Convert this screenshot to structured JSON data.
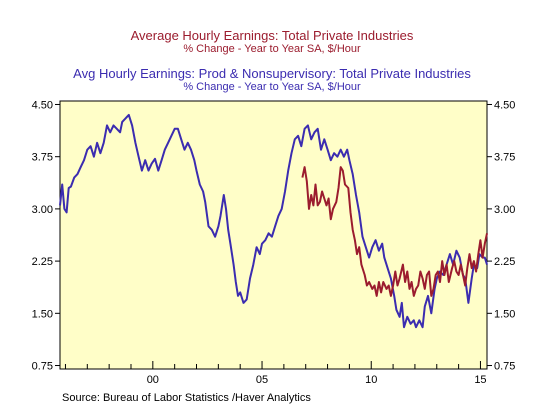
{
  "chart_data": {
    "type": "line",
    "titles": [
      {
        "line1": "Average Hourly Earnings: Total Private Industries",
        "line2": "% Change - Year to Year    SA, $/Hour",
        "color": "#9b1c2e"
      },
      {
        "line1": "Avg Hourly Earnings: Prod & Nonsupervisory: Total Private Industries",
        "line2": "% Change - Year to Year    SA, $/Hour",
        "color": "#3b2cb0"
      }
    ],
    "source": "Source:  Bureau of Labor Statistics /Haver Analytics",
    "x_ticks": [
      {
        "x": 2000,
        "label": "00"
      },
      {
        "x": 2005,
        "label": "05"
      },
      {
        "x": 2010,
        "label": "10"
      },
      {
        "x": 2015,
        "label": "15"
      }
    ],
    "y_ticks": [
      "4.50",
      "3.75",
      "3.00",
      "2.25",
      "1.50",
      "0.75"
    ],
    "xlim": [
      1995.75,
      2015.3
    ],
    "ylim": [
      0.7,
      4.55
    ],
    "grid": false,
    "background_color": "#fffec8",
    "series": [
      {
        "name": "Avg Hourly Earnings: Prod & Nonsupervisory: Total Private Industries",
        "color": "#3b2cb0",
        "points": [
          [
            1995.75,
            3.05
          ],
          [
            1995.85,
            3.35
          ],
          [
            1995.95,
            3.0
          ],
          [
            1996.05,
            2.95
          ],
          [
            1996.15,
            3.3
          ],
          [
            1996.25,
            3.32
          ],
          [
            1996.4,
            3.45
          ],
          [
            1996.55,
            3.5
          ],
          [
            1996.7,
            3.6
          ],
          [
            1996.85,
            3.7
          ],
          [
            1997.0,
            3.85
          ],
          [
            1997.15,
            3.9
          ],
          [
            1997.3,
            3.75
          ],
          [
            1997.45,
            3.95
          ],
          [
            1997.6,
            3.8
          ],
          [
            1997.75,
            3.95
          ],
          [
            1997.9,
            4.2
          ],
          [
            1998.05,
            4.1
          ],
          [
            1998.2,
            4.2
          ],
          [
            1998.35,
            4.15
          ],
          [
            1998.5,
            4.1
          ],
          [
            1998.6,
            4.25
          ],
          [
            1998.75,
            4.3
          ],
          [
            1998.9,
            4.35
          ],
          [
            1999.05,
            4.2
          ],
          [
            1999.2,
            3.95
          ],
          [
            1999.35,
            3.75
          ],
          [
            1999.5,
            3.55
          ],
          [
            1999.65,
            3.7
          ],
          [
            1999.8,
            3.55
          ],
          [
            1999.95,
            3.65
          ],
          [
            2000.1,
            3.72
          ],
          [
            2000.25,
            3.55
          ],
          [
            2000.4,
            3.7
          ],
          [
            2000.55,
            3.85
          ],
          [
            2000.7,
            3.95
          ],
          [
            2000.85,
            4.05
          ],
          [
            2001.0,
            4.15
          ],
          [
            2001.15,
            4.15
          ],
          [
            2001.3,
            4.0
          ],
          [
            2001.45,
            3.85
          ],
          [
            2001.6,
            3.95
          ],
          [
            2001.75,
            3.85
          ],
          [
            2001.9,
            3.7
          ],
          [
            2002.0,
            3.55
          ],
          [
            2002.15,
            3.35
          ],
          [
            2002.3,
            3.25
          ],
          [
            2002.4,
            3.1
          ],
          [
            2002.55,
            2.75
          ],
          [
            2002.7,
            2.7
          ],
          [
            2002.85,
            2.6
          ],
          [
            2003.0,
            2.75
          ],
          [
            2003.1,
            2.9
          ],
          [
            2003.25,
            3.2
          ],
          [
            2003.35,
            3.0
          ],
          [
            2003.45,
            2.7
          ],
          [
            2003.55,
            2.5
          ],
          [
            2003.7,
            2.2
          ],
          [
            2003.8,
            1.95
          ],
          [
            2003.9,
            1.75
          ],
          [
            2004.0,
            1.8
          ],
          [
            2004.15,
            1.65
          ],
          [
            2004.3,
            1.7
          ],
          [
            2004.45,
            2.0
          ],
          [
            2004.6,
            2.2
          ],
          [
            2004.75,
            2.45
          ],
          [
            2004.9,
            2.35
          ],
          [
            2005.0,
            2.5
          ],
          [
            2005.15,
            2.55
          ],
          [
            2005.3,
            2.65
          ],
          [
            2005.45,
            2.6
          ],
          [
            2005.6,
            2.75
          ],
          [
            2005.75,
            2.9
          ],
          [
            2005.9,
            3.0
          ],
          [
            2006.05,
            3.25
          ],
          [
            2006.2,
            3.55
          ],
          [
            2006.35,
            3.8
          ],
          [
            2006.5,
            4.0
          ],
          [
            2006.65,
            4.05
          ],
          [
            2006.8,
            3.9
          ],
          [
            2006.95,
            4.15
          ],
          [
            2007.1,
            4.2
          ],
          [
            2007.25,
            4.0
          ],
          [
            2007.4,
            4.1
          ],
          [
            2007.55,
            4.15
          ],
          [
            2007.7,
            3.85
          ],
          [
            2007.85,
            4.0
          ],
          [
            2008.0,
            3.85
          ],
          [
            2008.15,
            3.7
          ],
          [
            2008.3,
            3.8
          ],
          [
            2008.45,
            3.75
          ],
          [
            2008.6,
            3.85
          ],
          [
            2008.75,
            3.75
          ],
          [
            2008.9,
            3.85
          ],
          [
            2009.0,
            3.7
          ],
          [
            2009.15,
            3.5
          ],
          [
            2009.3,
            3.2
          ],
          [
            2009.45,
            2.95
          ],
          [
            2009.6,
            2.6
          ],
          [
            2009.75,
            2.45
          ],
          [
            2009.9,
            2.3
          ],
          [
            2010.05,
            2.45
          ],
          [
            2010.2,
            2.55
          ],
          [
            2010.35,
            2.4
          ],
          [
            2010.5,
            2.5
          ],
          [
            2010.6,
            2.3
          ],
          [
            2010.75,
            2.15
          ],
          [
            2010.9,
            2.0
          ],
          [
            2011.05,
            1.75
          ],
          [
            2011.15,
            1.55
          ],
          [
            2011.3,
            1.45
          ],
          [
            2011.4,
            1.65
          ],
          [
            2011.5,
            1.3
          ],
          [
            2011.65,
            1.45
          ],
          [
            2011.8,
            1.35
          ],
          [
            2011.95,
            1.4
          ],
          [
            2012.05,
            1.3
          ],
          [
            2012.2,
            1.4
          ],
          [
            2012.35,
            1.3
          ],
          [
            2012.45,
            1.6
          ],
          [
            2012.6,
            1.75
          ],
          [
            2012.75,
            1.5
          ],
          [
            2012.9,
            1.85
          ],
          [
            2013.0,
            2.0
          ],
          [
            2013.15,
            2.1
          ],
          [
            2013.3,
            2.05
          ],
          [
            2013.45,
            2.2
          ],
          [
            2013.6,
            2.35
          ],
          [
            2013.75,
            2.2
          ],
          [
            2013.9,
            2.4
          ],
          [
            2014.05,
            2.3
          ],
          [
            2014.2,
            2.05
          ],
          [
            2014.3,
            2.0
          ],
          [
            2014.45,
            1.65
          ],
          [
            2014.6,
            2.0
          ],
          [
            2014.7,
            2.2
          ],
          [
            2014.85,
            2.15
          ],
          [
            2014.95,
            2.35
          ],
          [
            2015.1,
            2.3
          ],
          [
            2015.2,
            2.3
          ],
          [
            2015.3,
            2.2
          ]
        ]
      },
      {
        "name": "Average Hourly Earnings: Total Private Industries",
        "color": "#9b1c2e",
        "points": [
          [
            2006.85,
            3.45
          ],
          [
            2006.95,
            3.6
          ],
          [
            2007.05,
            3.4
          ],
          [
            2007.15,
            3.0
          ],
          [
            2007.25,
            3.2
          ],
          [
            2007.35,
            3.05
          ],
          [
            2007.45,
            3.35
          ],
          [
            2007.55,
            3.05
          ],
          [
            2007.65,
            3.1
          ],
          [
            2007.75,
            3.25
          ],
          [
            2007.85,
            3.15
          ],
          [
            2007.95,
            3.05
          ],
          [
            2008.05,
            3.15
          ],
          [
            2008.15,
            2.85
          ],
          [
            2008.25,
            3.0
          ],
          [
            2008.4,
            3.1
          ],
          [
            2008.5,
            3.3
          ],
          [
            2008.6,
            3.6
          ],
          [
            2008.7,
            3.55
          ],
          [
            2008.8,
            3.35
          ],
          [
            2008.95,
            3.3
          ],
          [
            2009.05,
            2.95
          ],
          [
            2009.15,
            2.7
          ],
          [
            2009.25,
            2.55
          ],
          [
            2009.35,
            2.35
          ],
          [
            2009.45,
            2.45
          ],
          [
            2009.55,
            2.2
          ],
          [
            2009.7,
            2.05
          ],
          [
            2009.8,
            1.9
          ],
          [
            2009.9,
            1.95
          ],
          [
            2010.05,
            1.85
          ],
          [
            2010.15,
            1.9
          ],
          [
            2010.25,
            1.75
          ],
          [
            2010.35,
            1.95
          ],
          [
            2010.45,
            1.8
          ],
          [
            2010.55,
            1.95
          ],
          [
            2010.7,
            1.85
          ],
          [
            2010.8,
            1.9
          ],
          [
            2010.9,
            1.75
          ],
          [
            2011.0,
            1.9
          ],
          [
            2011.1,
            2.1
          ],
          [
            2011.2,
            1.9
          ],
          [
            2011.3,
            2.0
          ],
          [
            2011.45,
            2.2
          ],
          [
            2011.55,
            1.95
          ],
          [
            2011.65,
            2.1
          ],
          [
            2011.75,
            1.85
          ],
          [
            2011.85,
            1.95
          ],
          [
            2011.95,
            1.75
          ],
          [
            2012.05,
            1.85
          ],
          [
            2012.15,
            1.9
          ],
          [
            2012.25,
            2.1
          ],
          [
            2012.35,
            2.0
          ],
          [
            2012.45,
            1.85
          ],
          [
            2012.55,
            2.05
          ],
          [
            2012.65,
            2.1
          ],
          [
            2012.75,
            1.75
          ],
          [
            2012.85,
            1.85
          ],
          [
            2012.95,
            2.05
          ],
          [
            2013.05,
            2.1
          ],
          [
            2013.15,
            1.95
          ],
          [
            2013.25,
            2.25
          ],
          [
            2013.35,
            2.05
          ],
          [
            2013.45,
            2.2
          ],
          [
            2013.55,
            1.95
          ],
          [
            2013.7,
            2.15
          ],
          [
            2013.8,
            2.25
          ],
          [
            2013.9,
            2.1
          ],
          [
            2014.0,
            2.05
          ],
          [
            2014.1,
            2.2
          ],
          [
            2014.2,
            2.05
          ],
          [
            2014.3,
            1.9
          ],
          [
            2014.4,
            2.15
          ],
          [
            2014.5,
            2.35
          ],
          [
            2014.6,
            2.15
          ],
          [
            2014.7,
            2.25
          ],
          [
            2014.8,
            2.1
          ],
          [
            2014.9,
            2.35
          ],
          [
            2015.0,
            2.55
          ],
          [
            2015.1,
            2.3
          ],
          [
            2015.2,
            2.5
          ],
          [
            2015.3,
            2.65
          ]
        ]
      }
    ]
  }
}
